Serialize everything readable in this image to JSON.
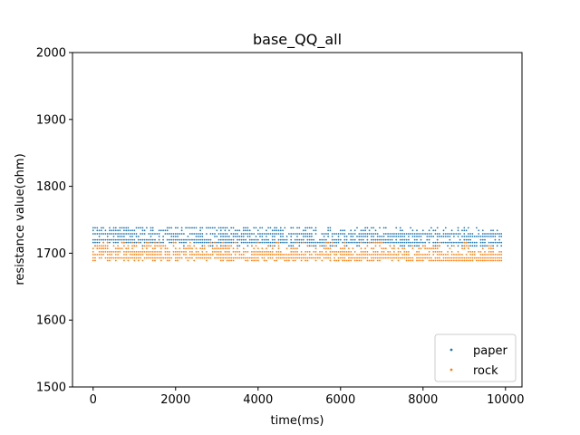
{
  "chart_data": {
    "type": "scatter",
    "title": "base_QQ_all",
    "xlabel": "time(ms)",
    "ylabel": "resistance value(ohm)",
    "xlim": [
      -500,
      10400
    ],
    "ylim": [
      1500,
      2000
    ],
    "xticks": [
      0,
      2000,
      4000,
      6000,
      8000,
      10000
    ],
    "yticks": [
      1500,
      1600,
      1700,
      1800,
      1900,
      2000
    ],
    "xtick_labels": [
      "0",
      "2000",
      "4000",
      "6000",
      "8000",
      "10000"
    ],
    "ytick_labels": [
      "1500",
      "1600",
      "1700",
      "1800",
      "1900",
      "2000"
    ],
    "grid": false,
    "legend_position": "lower-right",
    "series": [
      {
        "name": "paper",
        "color": "#1f77b4",
        "x_range": [
          0,
          9900
        ],
        "levels": [
          {
            "y": 1738,
            "start": [
              0,
              0.78
            ],
            "end": [
              9900,
              0.12
            ]
          },
          {
            "y": 1734,
            "start": [
              0,
              0.55
            ],
            "end": [
              9900,
              0.28
            ]
          },
          {
            "y": 1729,
            "start": [
              0,
              0.92
            ],
            "end": [
              9900,
              0.75
            ]
          },
          {
            "y": 1725,
            "start": [
              0,
              0.3
            ],
            "end": [
              9900,
              0.92
            ]
          },
          {
            "y": 1720,
            "start": [
              0,
              0.95
            ],
            "end": [
              9900,
              0.55
            ]
          },
          {
            "y": 1716,
            "start": [
              0,
              0.88
            ],
            "end": [
              9900,
              0.9
            ]
          },
          {
            "y": 1711,
            "start": [
              0,
              0.08
            ],
            "end": [
              9900,
              0.7
            ]
          }
        ]
      },
      {
        "name": "rock",
        "color": "#ff7f0e",
        "x_range": [
          0,
          9900
        ],
        "levels": [
          {
            "y": 1716,
            "start": [
              0,
              0.3
            ],
            "end": [
              9900,
              0.1
            ]
          },
          {
            "y": 1711,
            "start": [
              0,
              0.45
            ],
            "end": [
              9900,
              0.15
            ]
          },
          {
            "y": 1707,
            "start": [
              0,
              0.65
            ],
            "end": [
              9900,
              0.35
            ]
          },
          {
            "y": 1702,
            "start": [
              0,
              0.8
            ],
            "end": [
              9900,
              0.55
            ]
          },
          {
            "y": 1698,
            "start": [
              0,
              0.92
            ],
            "end": [
              9900,
              0.8
            ]
          },
          {
            "y": 1693,
            "start": [
              0,
              0.88
            ],
            "end": [
              9900,
              0.9
            ]
          },
          {
            "y": 1689,
            "start": [
              0,
              0.2
            ],
            "end": [
              9900,
              0.95
            ]
          }
        ]
      }
    ]
  }
}
